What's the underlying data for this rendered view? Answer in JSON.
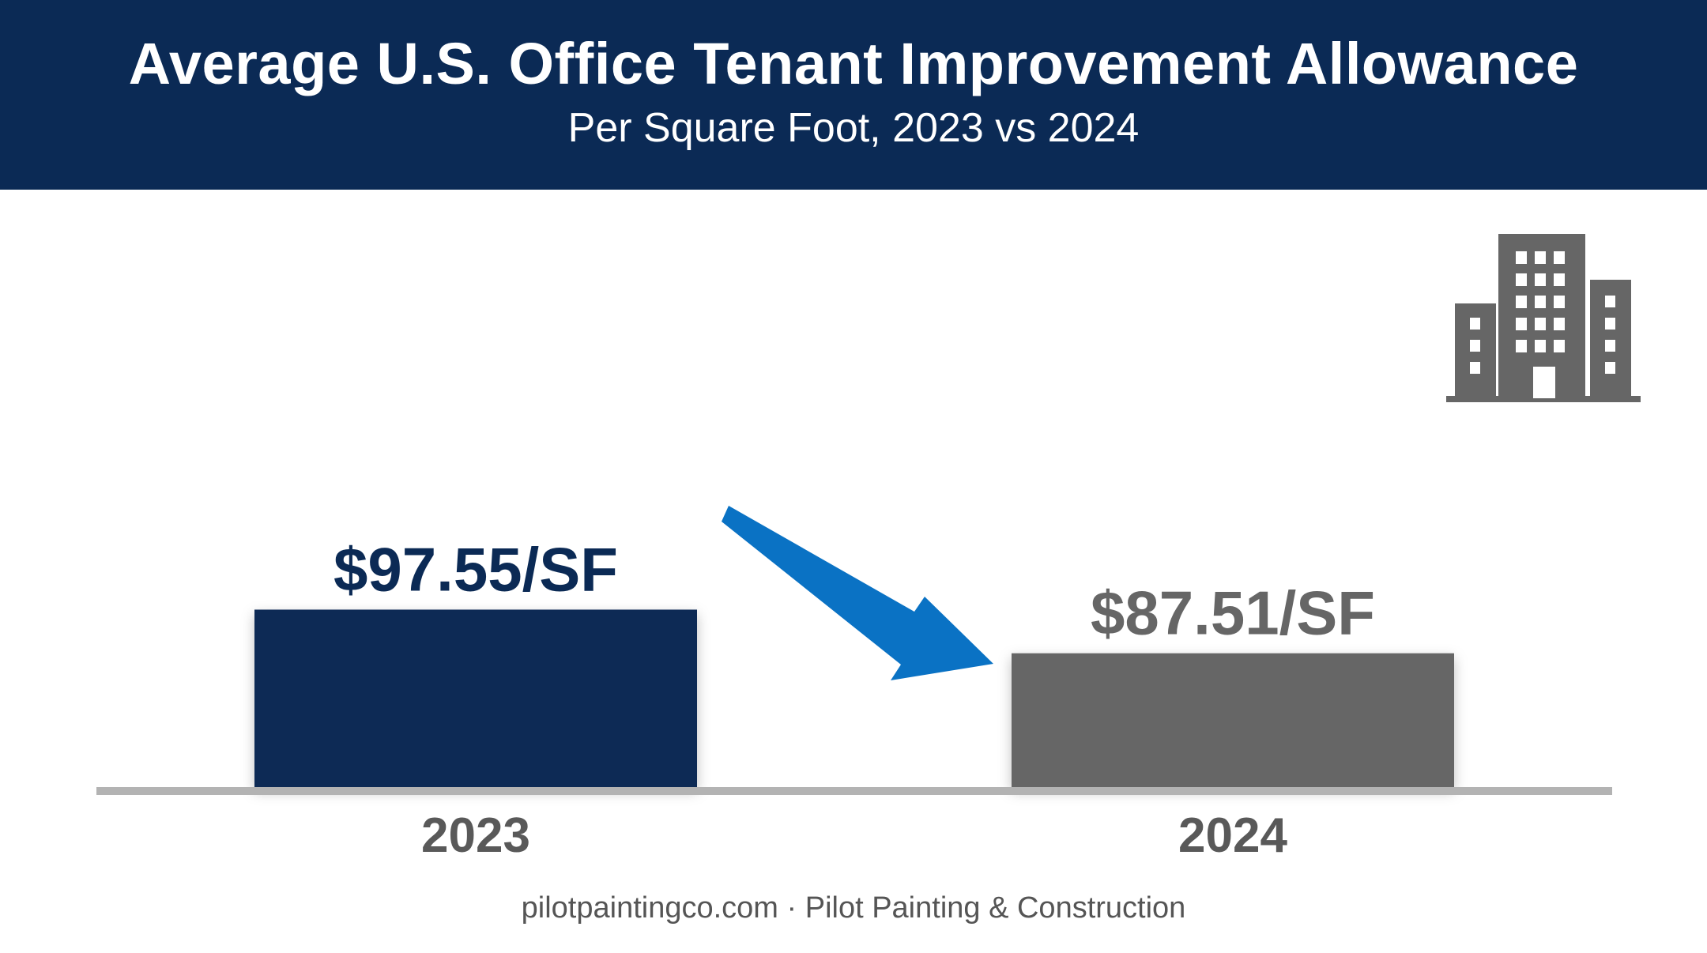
{
  "header": {
    "title": "Average U.S. Office Tenant Improvement Allowance",
    "subtitle": "Per Square Foot, 2023 vs 2024"
  },
  "chart_data": {
    "type": "bar",
    "categories": [
      "2023",
      "2024"
    ],
    "values": [
      97.55,
      87.51
    ],
    "value_labels": [
      "$97.55/SF",
      "$87.51/SF"
    ],
    "bar_colors": [
      "#0b2a55",
      "#666666"
    ],
    "label_colors": [
      "#0b2a55",
      "#666666"
    ],
    "title": "Average U.S. Office Tenant Improvement Allowance",
    "subtitle": "Per Square Foot, 2023 vs 2024",
    "xlabel": "",
    "ylabel": "",
    "grid": false,
    "annotation": "down-arrow-icon",
    "decoration": "office-building-icon"
  },
  "colors": {
    "header_bg": "#0b2a55",
    "accent_arrow": "#0a72c4",
    "baseline": "#b3b3b3",
    "icon": "#666666"
  },
  "footer": {
    "credit": "pilotpaintingco.com · Pilot Painting & Construction"
  }
}
